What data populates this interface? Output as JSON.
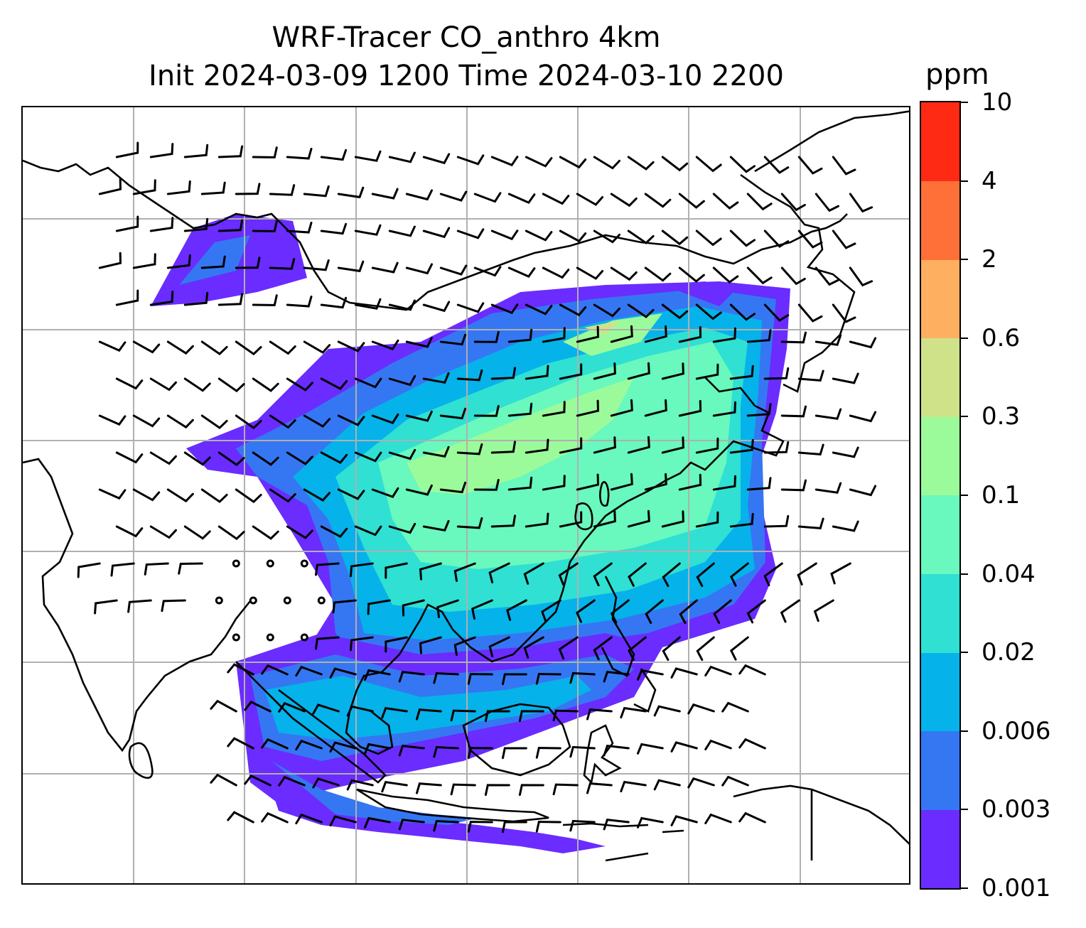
{
  "title": {
    "line1": "WRF-Tracer CO_anthro 4km",
    "line2": "Init 2024-03-09 1200 Time 2024-03-10 2200"
  },
  "colorbar": {
    "unit": "ppm",
    "levels": [
      "0.001",
      "0.003",
      "0.006",
      "0.02",
      "0.04",
      "0.1",
      "0.3",
      "0.6",
      "2",
      "4",
      "10"
    ],
    "colors": [
      "#6a2cff",
      "#3577f2",
      "#06b2ea",
      "#2fe0d3",
      "#69f8be",
      "#9bfb9b",
      "#cfe28a",
      "#ffaf60",
      "#ff7038",
      "#ff2a14"
    ]
  },
  "map": {
    "gridlines": "on",
    "wind_barbs": "shown",
    "coastlines": "shown"
  }
}
